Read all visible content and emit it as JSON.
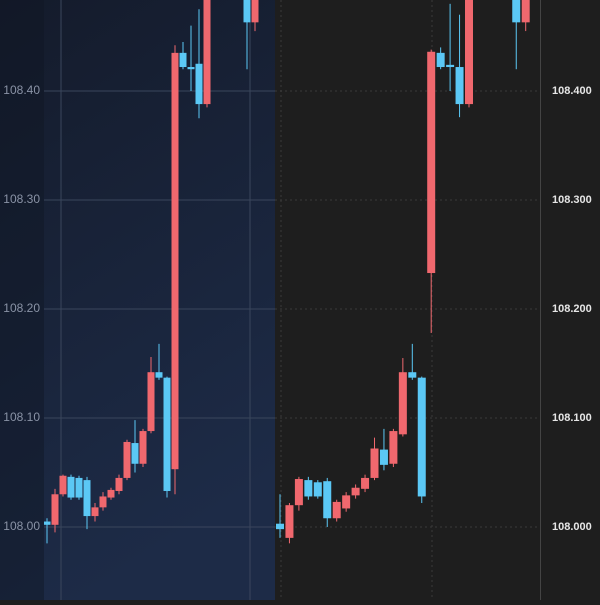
{
  "chart_data": [
    {
      "type": "candlestick",
      "categories": [
        null,
        null,
        null,
        null,
        null,
        null,
        null,
        null,
        null,
        null,
        null,
        null,
        null,
        null,
        null,
        null,
        null,
        null,
        null,
        null,
        null,
        null,
        null,
        null,
        null,
        null,
        null
      ],
      "open": [
        108.005,
        108.002,
        108.03,
        108.046,
        108.045,
        108.043,
        108.01,
        108.018,
        108.027,
        108.033,
        108.045,
        108.077,
        108.058,
        108.088,
        108.142,
        108.137,
        108.053,
        108.435,
        108.422,
        108.425,
        108.388,
        null,
        null,
        null,
        null,
        108.485,
        108.463
      ],
      "high": [
        108.008,
        108.035,
        108.048,
        108.048,
        108.047,
        108.046,
        108.022,
        108.032,
        108.036,
        108.048,
        108.08,
        108.098,
        108.09,
        108.156,
        108.168,
        108.138,
        108.442,
        108.445,
        108.46,
        108.475,
        108.49,
        null,
        null,
        null,
        null,
        108.49,
        108.49
      ],
      "low": [
        107.985,
        107.995,
        108.028,
        108.025,
        108.025,
        107.998,
        108.005,
        108.015,
        108.025,
        108.03,
        108.043,
        108.05,
        108.055,
        108.086,
        108.135,
        108.027,
        108.03,
        108.42,
        108.4,
        108.375,
        108.385,
        null,
        null,
        null,
        null,
        108.42,
        108.455
      ],
      "close": [
        108.002,
        108.03,
        108.047,
        108.027,
        108.027,
        108.01,
        108.018,
        108.028,
        108.034,
        108.045,
        108.078,
        108.058,
        108.088,
        108.142,
        108.137,
        108.033,
        108.435,
        108.422,
        108.42,
        108.388,
        108.485,
        null,
        null,
        null,
        null,
        108.463,
        108.49
      ],
      "up_color": "#f0686e",
      "down_color": "#5bc8f5",
      "ylim": [
        107.933,
        108.4835
      ],
      "yticks": [
        {
          "value": 108.0,
          "label": "108.00"
        },
        {
          "value": 108.1,
          "label": "108.10"
        },
        {
          "value": 108.2,
          "label": "108.20"
        },
        {
          "value": 108.3,
          "label": "108.30"
        },
        {
          "value": 108.4,
          "label": "108.40"
        }
      ],
      "grid": true
    },
    {
      "type": "candlestick",
      "categories": [
        null,
        null,
        null,
        null,
        null,
        null,
        null,
        null,
        null,
        null,
        null,
        null,
        null,
        null,
        null,
        null,
        null,
        null,
        null,
        null,
        null,
        null,
        null,
        null,
        null,
        null,
        null
      ],
      "open": [
        108.003,
        107.99,
        108.02,
        108.043,
        108.041,
        108.042,
        108.008,
        108.017,
        108.029,
        108.035,
        108.045,
        108.071,
        108.058,
        108.085,
        108.142,
        108.137,
        108.233,
        108.435,
        108.424,
        108.422,
        108.388,
        null,
        null,
        null,
        null,
        108.485,
        108.463
      ],
      "high": [
        108.03,
        108.022,
        108.046,
        108.046,
        108.043,
        108.045,
        108.025,
        108.032,
        108.039,
        108.048,
        108.082,
        108.09,
        108.09,
        108.155,
        108.168,
        108.138,
        108.438,
        108.44,
        108.48,
        108.47,
        108.49,
        null,
        null,
        null,
        null,
        108.49,
        108.49
      ],
      "low": [
        107.99,
        107.985,
        108.015,
        108.025,
        108.026,
        108.0,
        108.005,
        108.014,
        108.026,
        108.032,
        108.043,
        108.052,
        108.055,
        108.083,
        108.135,
        108.022,
        108.178,
        108.42,
        108.4,
        108.376,
        108.385,
        null,
        null,
        null,
        null,
        108.42,
        108.455
      ],
      "close": [
        107.998,
        108.02,
        108.044,
        108.028,
        108.028,
        108.008,
        108.023,
        108.029,
        108.036,
        108.045,
        108.072,
        108.057,
        108.088,
        108.142,
        108.137,
        108.028,
        108.436,
        108.422,
        108.422,
        108.388,
        108.485,
        null,
        null,
        null,
        null,
        108.463,
        108.49
      ],
      "up_color": "#f0686e",
      "down_color": "#5bc8f5",
      "ylim": [
        107.933,
        108.4835
      ],
      "yticks": [
        {
          "value": 108.0,
          "label": "108.000"
        },
        {
          "value": 108.1,
          "label": "108.100"
        },
        {
          "value": 108.2,
          "label": "108.200"
        },
        {
          "value": 108.3,
          "label": "108.300"
        },
        {
          "value": 108.4,
          "label": "108.400"
        }
      ],
      "grid": true
    }
  ]
}
